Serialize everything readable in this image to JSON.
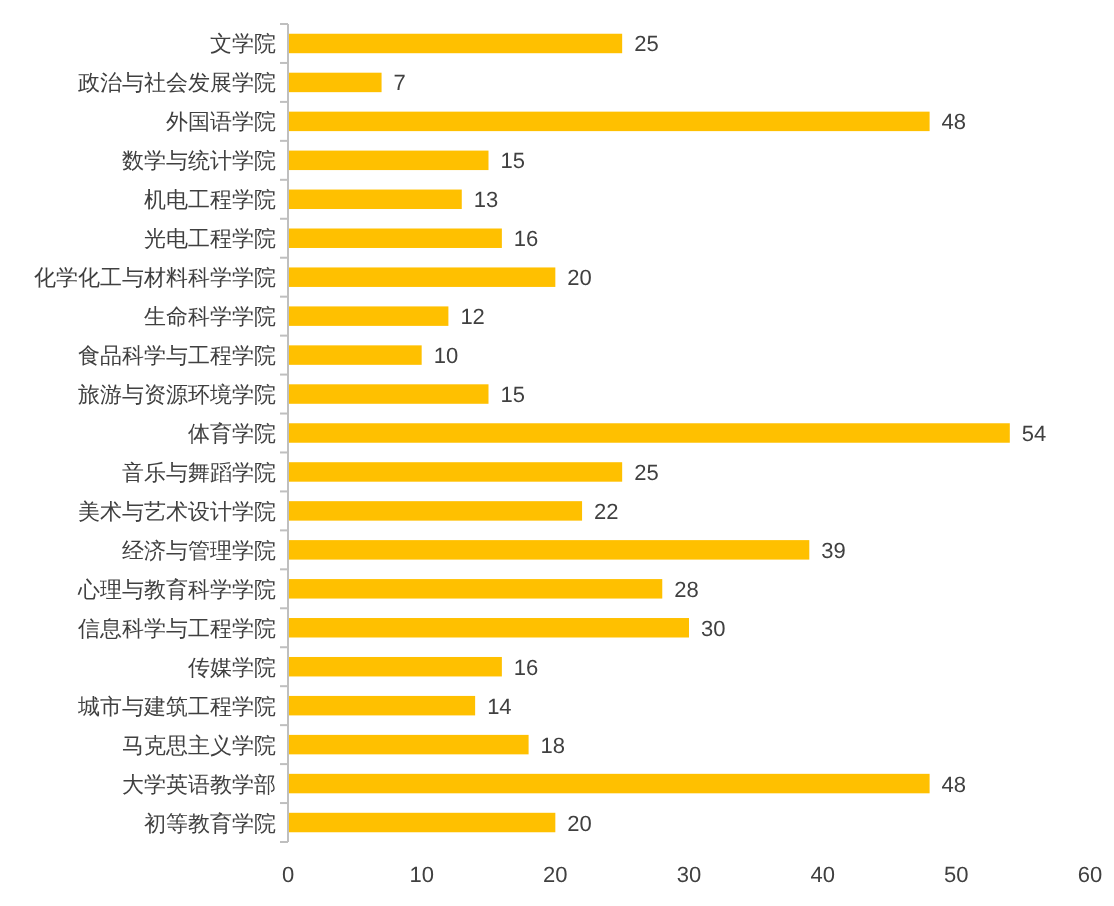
{
  "chart_data": {
    "type": "bar",
    "orientation": "horizontal",
    "categories": [
      "文学院",
      "政治与社会发展学院",
      "外国语学院",
      "数学与统计学院",
      "机电工程学院",
      "光电工程学院",
      "化学化工与材料科学学院",
      "生命科学学院",
      "食品科学与工程学院",
      "旅游与资源环境学院",
      "体育学院",
      "音乐与舞蹈学院",
      "美术与艺术设计学院",
      "经济与管理学院",
      "心理与教育科学学院",
      "信息科学与工程学院",
      "传媒学院",
      "城市与建筑工程学院",
      "马克思主义学院",
      "大学英语教学部",
      "初等教育学院"
    ],
    "values": [
      25,
      7,
      48,
      15,
      13,
      16,
      20,
      12,
      10,
      15,
      54,
      25,
      22,
      39,
      28,
      30,
      16,
      14,
      18,
      48,
      20
    ],
    "color": "#ffc000",
    "xlim": [
      0,
      60
    ],
    "xticks": [
      0,
      10,
      20,
      30,
      40,
      50,
      60
    ],
    "data_labels": true
  }
}
